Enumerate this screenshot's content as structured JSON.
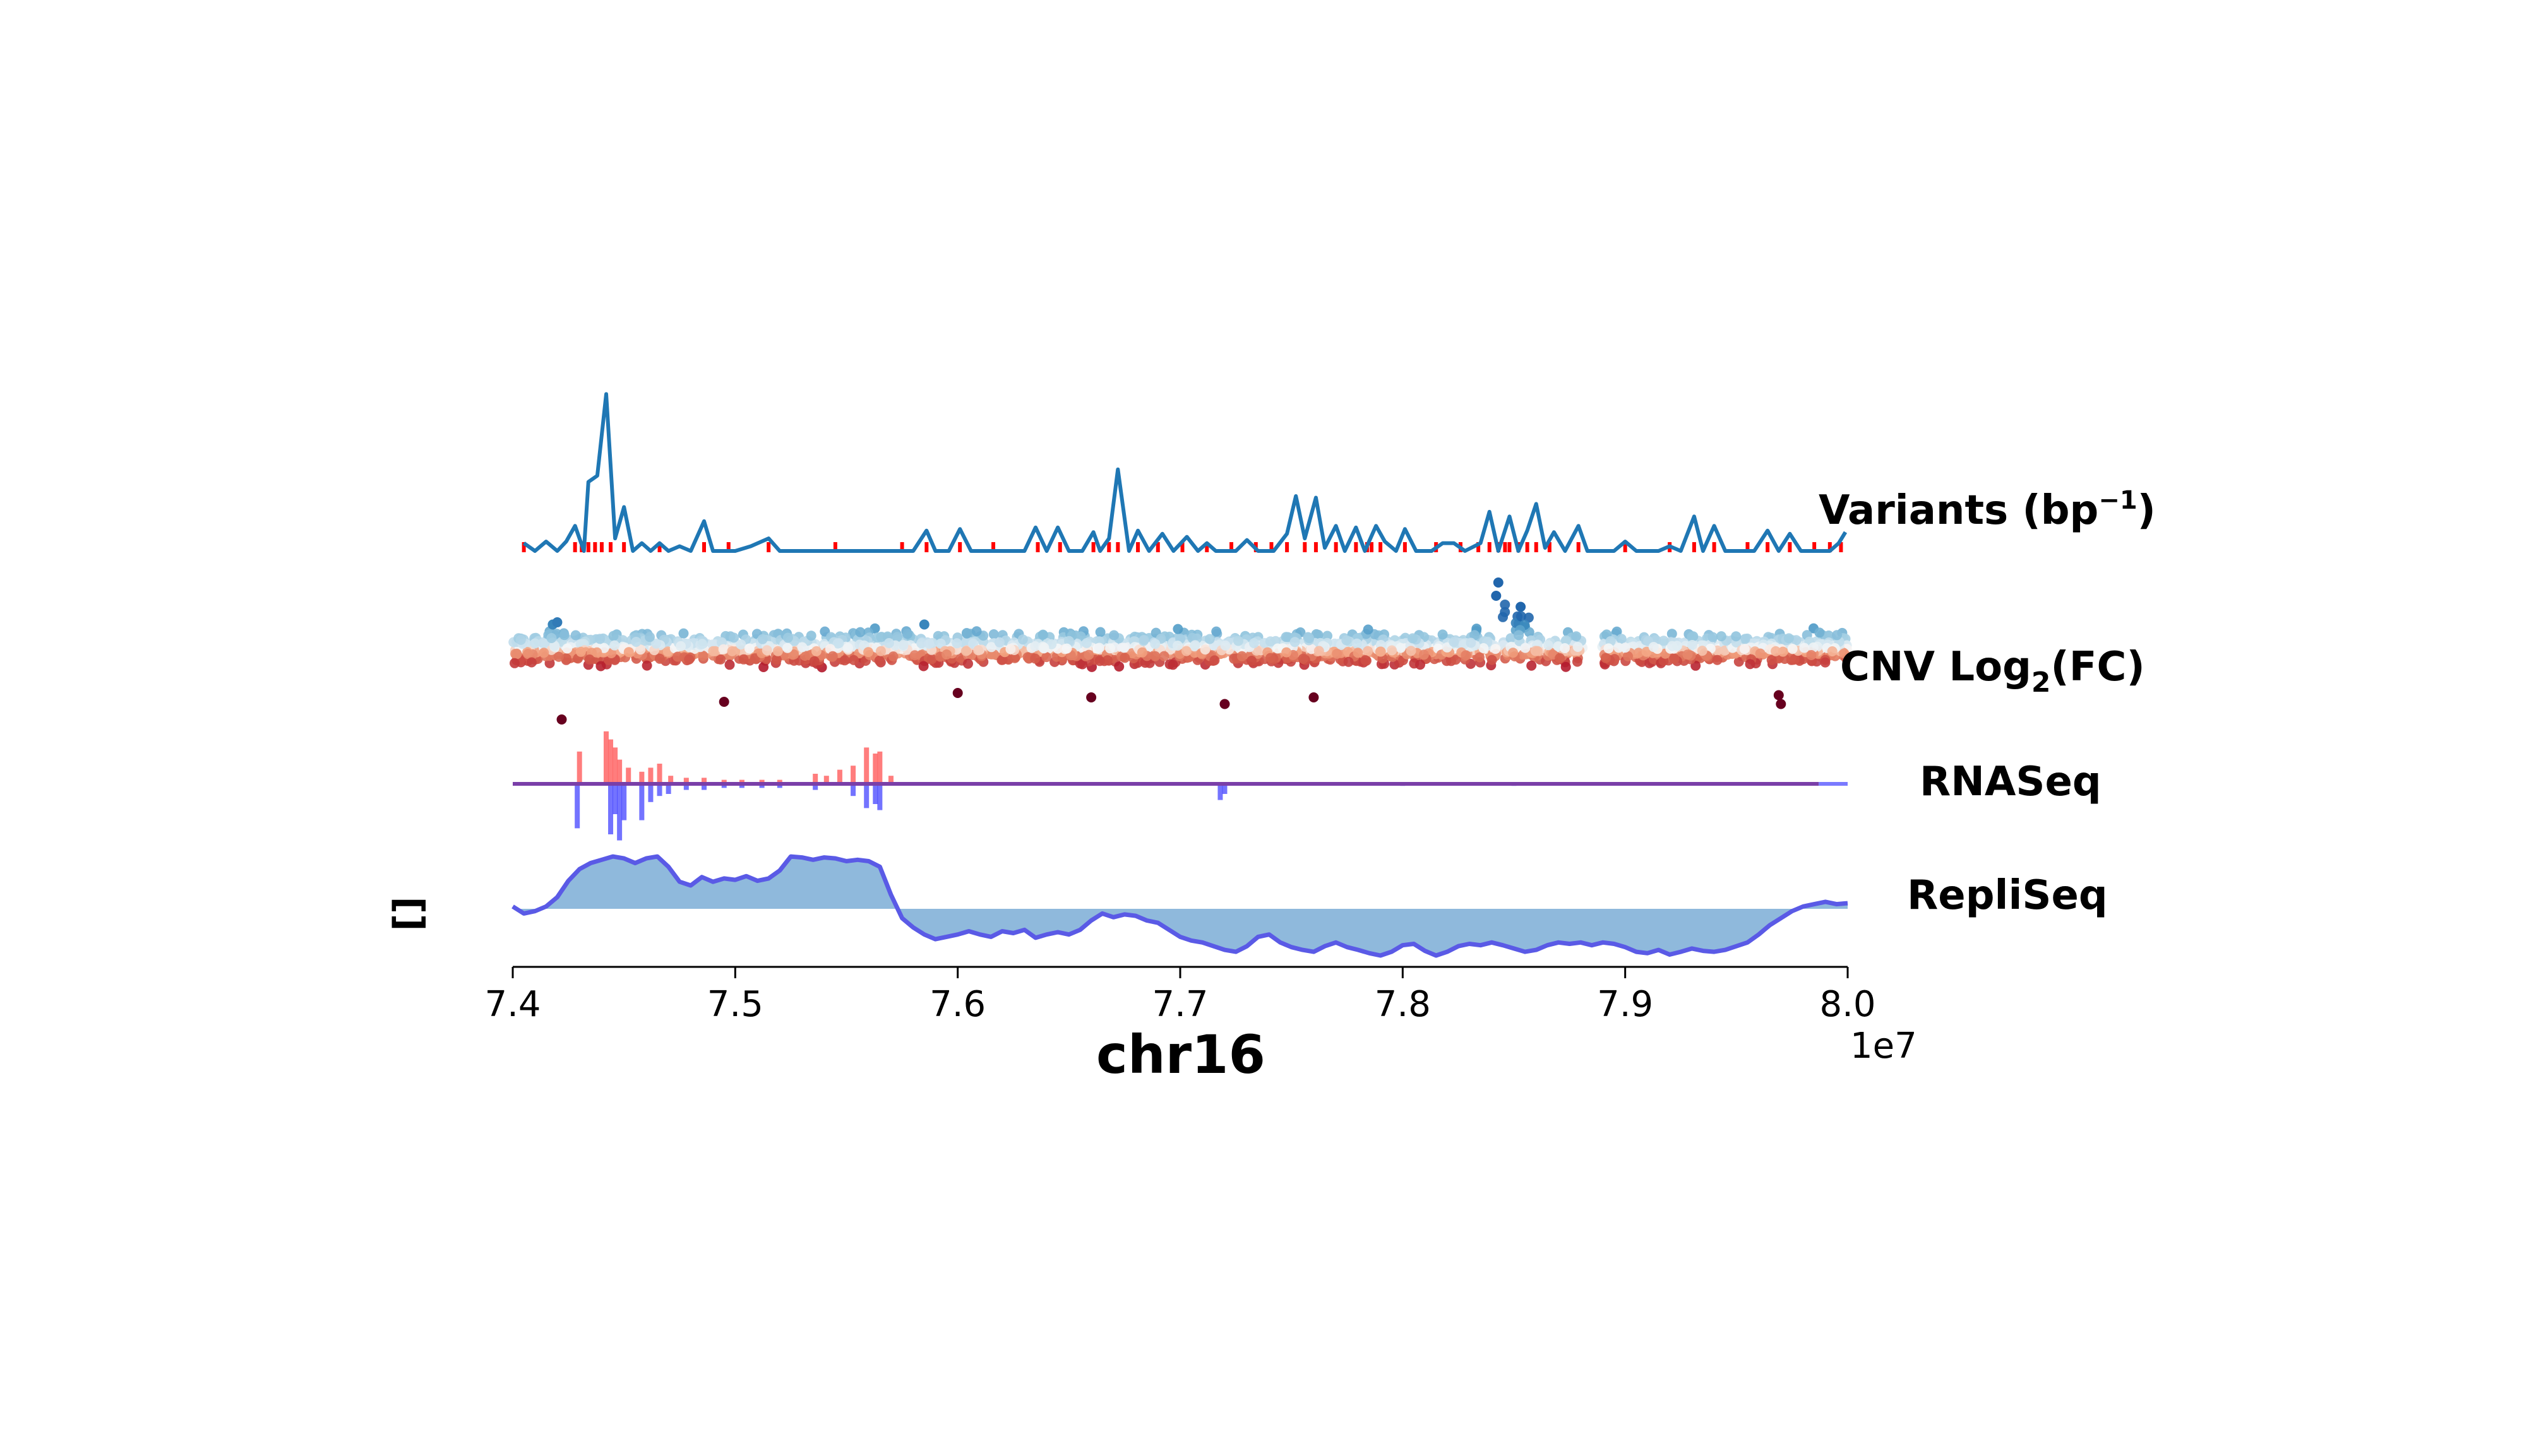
{
  "chart_data": {
    "type": "line",
    "title": "",
    "xlabel": "chr16",
    "x_offset_label": "1e7",
    "xlim": [
      7.4,
      8.0
    ],
    "x_ticks": [
      {
        "value": 7.4,
        "label": "7.4"
      },
      {
        "value": 7.5,
        "label": "7.5"
      },
      {
        "value": 7.6,
        "label": "7.6"
      },
      {
        "value": 7.7,
        "label": "7.7"
      },
      {
        "value": 7.8,
        "label": "7.8"
      },
      {
        "value": 7.9,
        "label": "7.9"
      },
      {
        "value": 8.0,
        "label": "8.0"
      }
    ],
    "left_ylabel": "[]",
    "grid": false,
    "tracks": [
      {
        "name": "variants",
        "label_main": "Variants (bp",
        "label_sup": "−1",
        "label_end": ")",
        "kind": "line",
        "color": "#1f77b4",
        "marker_color": "#ff0000",
        "x": [
          7.405,
          7.415,
          7.425,
          7.435,
          7.445,
          7.45,
          7.455,
          7.46,
          7.465,
          7.47,
          7.48,
          7.485,
          7.49,
          7.5,
          7.515,
          7.53,
          7.56,
          7.585,
          7.6,
          7.63,
          7.64,
          7.65,
          7.665,
          7.67,
          7.68,
          7.69,
          7.7,
          7.715,
          7.73,
          7.74,
          7.745,
          7.75,
          7.76,
          7.765,
          7.775,
          7.785,
          7.795,
          7.805,
          7.815,
          7.825,
          7.83,
          7.84,
          7.845,
          7.855,
          7.86,
          7.87,
          7.88,
          7.89,
          7.895,
          7.905,
          7.915,
          7.925,
          7.935,
          7.95,
          7.96,
          7.97,
          7.98,
          7.99,
          7.995
        ],
        "y": [
          0.5,
          0.5,
          0.5,
          1.5,
          0.5,
          0.5,
          0.5,
          0.5,
          0.5,
          0.5,
          0.5,
          0.5,
          0.5,
          0.5,
          0.5,
          0.5,
          0.5,
          0.5,
          0.5,
          0.5,
          0.5,
          0.5,
          0.5,
          0.5,
          0.5,
          0.5,
          0.5,
          0.5,
          0.5,
          0.5,
          0.5,
          0.5,
          0.5,
          0.5,
          0.5,
          0.5,
          0.5,
          0.5,
          0.5,
          0.5,
          0.5,
          0.5,
          0.5,
          0.5,
          0.5,
          0.5,
          0.5,
          0.5,
          0.5,
          0.5,
          0.5,
          0.5,
          0.5,
          0.5,
          0.5,
          0.5,
          0.5,
          0.5,
          0.5
        ],
        "peaks": [
          {
            "x": 7.405,
            "y": 0.5
          },
          {
            "x": 7.41,
            "y": 0.0
          },
          {
            "x": 7.415,
            "y": 0.6
          },
          {
            "x": 7.42,
            "y": 0.0
          },
          {
            "x": 7.424,
            "y": 0.6
          },
          {
            "x": 7.428,
            "y": 1.6
          },
          {
            "x": 7.432,
            "y": 0.0
          },
          {
            "x": 7.434,
            "y": 4.4
          },
          {
            "x": 7.438,
            "y": 4.8
          },
          {
            "x": 7.442,
            "y": 10.0
          },
          {
            "x": 7.446,
            "y": 0.8
          },
          {
            "x": 7.45,
            "y": 2.8
          },
          {
            "x": 7.454,
            "y": 0.0
          },
          {
            "x": 7.458,
            "y": 0.5
          },
          {
            "x": 7.462,
            "y": 0.0
          },
          {
            "x": 7.466,
            "y": 0.5
          },
          {
            "x": 7.47,
            "y": 0.0
          },
          {
            "x": 7.475,
            "y": 0.3
          },
          {
            "x": 7.48,
            "y": 0.0
          },
          {
            "x": 7.486,
            "y": 1.9
          },
          {
            "x": 7.49,
            "y": 0.0
          },
          {
            "x": 7.5,
            "y": 0.0
          },
          {
            "x": 7.507,
            "y": 0.3
          },
          {
            "x": 7.515,
            "y": 0.8
          },
          {
            "x": 7.52,
            "y": 0.0
          },
          {
            "x": 7.58,
            "y": 0.0
          },
          {
            "x": 7.586,
            "y": 1.3
          },
          {
            "x": 7.59,
            "y": 0.0
          },
          {
            "x": 7.596,
            "y": 0.0
          },
          {
            "x": 7.601,
            "y": 1.4
          },
          {
            "x": 7.606,
            "y": 0.0
          },
          {
            "x": 7.63,
            "y": 0.0
          },
          {
            "x": 7.635,
            "y": 1.5
          },
          {
            "x": 7.64,
            "y": 0.0
          },
          {
            "x": 7.645,
            "y": 1.5
          },
          {
            "x": 7.65,
            "y": 0.0
          },
          {
            "x": 7.656,
            "y": 0.0
          },
          {
            "x": 7.661,
            "y": 1.2
          },
          {
            "x": 7.664,
            "y": 0.0
          },
          {
            "x": 7.668,
            "y": 0.8
          },
          {
            "x": 7.672,
            "y": 5.2
          },
          {
            "x": 7.677,
            "y": 0.0
          },
          {
            "x": 7.681,
            "y": 1.3
          },
          {
            "x": 7.686,
            "y": 0.0
          },
          {
            "x": 7.692,
            "y": 1.1
          },
          {
            "x": 7.697,
            "y": 0.0
          },
          {
            "x": 7.703,
            "y": 0.9
          },
          {
            "x": 7.708,
            "y": 0.0
          },
          {
            "x": 7.712,
            "y": 0.5
          },
          {
            "x": 7.716,
            "y": 0.0
          },
          {
            "x": 7.725,
            "y": 0.0
          },
          {
            "x": 7.73,
            "y": 0.7
          },
          {
            "x": 7.735,
            "y": 0.0
          },
          {
            "x": 7.742,
            "y": 0.0
          },
          {
            "x": 7.748,
            "y": 1.1
          },
          {
            "x": 7.752,
            "y": 3.5
          },
          {
            "x": 7.756,
            "y": 0.8
          },
          {
            "x": 7.761,
            "y": 3.4
          },
          {
            "x": 7.765,
            "y": 0.2
          },
          {
            "x": 7.77,
            "y": 1.6
          },
          {
            "x": 7.774,
            "y": 0.0
          },
          {
            "x": 7.779,
            "y": 1.5
          },
          {
            "x": 7.783,
            "y": 0.0
          },
          {
            "x": 7.788,
            "y": 1.6
          },
          {
            "x": 7.792,
            "y": 0.6
          },
          {
            "x": 7.797,
            "y": 0.0
          },
          {
            "x": 7.801,
            "y": 1.4
          },
          {
            "x": 7.806,
            "y": 0.0
          },
          {
            "x": 7.813,
            "y": 0.0
          },
          {
            "x": 7.818,
            "y": 0.5
          },
          {
            "x": 7.823,
            "y": 0.5
          },
          {
            "x": 7.828,
            "y": 0.0
          },
          {
            "x": 7.835,
            "y": 0.5
          },
          {
            "x": 7.839,
            "y": 2.5
          },
          {
            "x": 7.843,
            "y": 0.0
          },
          {
            "x": 7.848,
            "y": 2.2
          },
          {
            "x": 7.852,
            "y": 0.0
          },
          {
            "x": 7.856,
            "y": 1.3
          },
          {
            "x": 7.86,
            "y": 3.0
          },
          {
            "x": 7.864,
            "y": 0.2
          },
          {
            "x": 7.868,
            "y": 1.2
          },
          {
            "x": 7.873,
            "y": 0.0
          },
          {
            "x": 7.879,
            "y": 1.6
          },
          {
            "x": 7.883,
            "y": 0.0
          },
          {
            "x": 7.895,
            "y": 0.0
          },
          {
            "x": 7.9,
            "y": 0.6
          },
          {
            "x": 7.905,
            "y": 0.0
          },
          {
            "x": 7.915,
            "y": 0.0
          },
          {
            "x": 7.92,
            "y": 0.3
          },
          {
            "x": 7.925,
            "y": 0.0
          },
          {
            "x": 7.931,
            "y": 2.2
          },
          {
            "x": 7.935,
            "y": 0.0
          },
          {
            "x": 7.94,
            "y": 1.6
          },
          {
            "x": 7.945,
            "y": 0.0
          },
          {
            "x": 7.958,
            "y": 0.0
          },
          {
            "x": 7.964,
            "y": 1.3
          },
          {
            "x": 7.969,
            "y": 0.0
          },
          {
            "x": 7.974,
            "y": 1.1
          },
          {
            "x": 7.979,
            "y": 0.0
          },
          {
            "x": 7.992,
            "y": 0.0
          },
          {
            "x": 7.996,
            "y": 0.5
          },
          {
            "x": 7.999,
            "y": 1.2
          }
        ],
        "ylim": [
          0,
          10.5
        ],
        "rug": [
          7.405,
          7.428,
          7.431,
          7.434,
          7.437,
          7.44,
          7.444,
          7.45,
          7.466,
          7.486,
          7.497,
          7.515,
          7.545,
          7.575,
          7.586,
          7.601,
          7.616,
          7.636,
          7.646,
          7.661,
          7.668,
          7.672,
          7.681,
          7.69,
          7.701,
          7.712,
          7.723,
          7.734,
          7.741,
          7.748,
          7.756,
          7.761,
          7.77,
          7.779,
          7.784,
          7.786,
          7.79,
          7.801,
          7.815,
          7.826,
          7.834,
          7.839,
          7.843,
          7.846,
          7.848,
          7.852,
          7.856,
          7.86,
          7.866,
          7.879,
          7.9,
          7.92,
          7.931,
          7.94,
          7.955,
          7.964,
          7.974,
          7.985,
          7.992,
          7.997
        ]
      },
      {
        "name": "cnv",
        "label_main": "CNV Log",
        "label_sub": "2",
        "label_end": "(FC)",
        "kind": "scatter",
        "colormap": "RdBu",
        "ylim": [
          -1.5,
          1.5
        ]
      },
      {
        "name": "rnaseq",
        "label_main": "RNASeq",
        "kind": "bar",
        "pos_color": "#ff6666",
        "neg_color": "#4444ff",
        "line_color": "#7a3fa8",
        "ylim": [
          -3,
          3
        ],
        "positive": [
          {
            "x": 7.43,
            "y": 1.6
          },
          {
            "x": 7.442,
            "y": 2.6
          },
          {
            "x": 7.444,
            "y": 2.2
          },
          {
            "x": 7.446,
            "y": 1.8
          },
          {
            "x": 7.448,
            "y": 1.2
          },
          {
            "x": 7.452,
            "y": 0.8
          },
          {
            "x": 7.458,
            "y": 0.6
          },
          {
            "x": 7.462,
            "y": 0.8
          },
          {
            "x": 7.466,
            "y": 1.0
          },
          {
            "x": 7.471,
            "y": 0.4
          },
          {
            "x": 7.478,
            "y": 0.3
          },
          {
            "x": 7.486,
            "y": 0.3
          },
          {
            "x": 7.495,
            "y": 0.2
          },
          {
            "x": 7.503,
            "y": 0.2
          },
          {
            "x": 7.512,
            "y": 0.2
          },
          {
            "x": 7.52,
            "y": 0.2
          },
          {
            "x": 7.536,
            "y": 0.5
          },
          {
            "x": 7.541,
            "y": 0.4
          },
          {
            "x": 7.547,
            "y": 0.7
          },
          {
            "x": 7.553,
            "y": 0.9
          },
          {
            "x": 7.559,
            "y": 1.8
          },
          {
            "x": 7.563,
            "y": 1.5
          },
          {
            "x": 7.565,
            "y": 1.6
          },
          {
            "x": 7.57,
            "y": 0.4
          }
        ],
        "negative": [
          {
            "x": 7.429,
            "y": -2.2
          },
          {
            "x": 7.444,
            "y": -2.5
          },
          {
            "x": 7.446,
            "y": -1.5
          },
          {
            "x": 7.448,
            "y": -2.8
          },
          {
            "x": 7.45,
            "y": -1.8
          },
          {
            "x": 7.458,
            "y": -1.8
          },
          {
            "x": 7.462,
            "y": -0.9
          },
          {
            "x": 7.466,
            "y": -0.6
          },
          {
            "x": 7.47,
            "y": -0.5
          },
          {
            "x": 7.478,
            "y": -0.3
          },
          {
            "x": 7.486,
            "y": -0.3
          },
          {
            "x": 7.495,
            "y": -0.2
          },
          {
            "x": 7.503,
            "y": -0.2
          },
          {
            "x": 7.512,
            "y": -0.2
          },
          {
            "x": 7.52,
            "y": -0.2
          },
          {
            "x": 7.536,
            "y": -0.3
          },
          {
            "x": 7.553,
            "y": -0.6
          },
          {
            "x": 7.559,
            "y": -1.2
          },
          {
            "x": 7.563,
            "y": -1.0
          },
          {
            "x": 7.565,
            "y": -1.3
          },
          {
            "x": 7.718,
            "y": -0.8
          },
          {
            "x": 7.72,
            "y": -0.5
          },
          {
            "x": 7.8,
            "y": -0.1
          },
          {
            "x": 7.85,
            "y": -0.1
          }
        ]
      },
      {
        "name": "repliseq",
        "label_main": "RepliSeq",
        "kind": "area",
        "fill_color": "#8fb9dc",
        "line_color": "#5a5ae6",
        "ylim": [
          -1.2,
          1.2
        ],
        "x": [
          7.4,
          7.405,
          7.41,
          7.415,
          7.42,
          7.425,
          7.43,
          7.435,
          7.44,
          7.445,
          7.45,
          7.455,
          7.46,
          7.465,
          7.47,
          7.475,
          7.48,
          7.485,
          7.49,
          7.495,
          7.5,
          7.505,
          7.51,
          7.515,
          7.52,
          7.525,
          7.53,
          7.535,
          7.54,
          7.545,
          7.55,
          7.555,
          7.56,
          7.565,
          7.57,
          7.575,
          7.58,
          7.585,
          7.59,
          7.595,
          7.6,
          7.605,
          7.61,
          7.615,
          7.62,
          7.625,
          7.63,
          7.635,
          7.64,
          7.645,
          7.65,
          7.655,
          7.66,
          7.665,
          7.67,
          7.675,
          7.68,
          7.685,
          7.69,
          7.695,
          7.7,
          7.705,
          7.71,
          7.715,
          7.72,
          7.725,
          7.73,
          7.735,
          7.74,
          7.745,
          7.75,
          7.755,
          7.76,
          7.765,
          7.77,
          7.775,
          7.78,
          7.785,
          7.79,
          7.795,
          7.8,
          7.805,
          7.81,
          7.815,
          7.82,
          7.825,
          7.83,
          7.835,
          7.84,
          7.845,
          7.85,
          7.855,
          7.86,
          7.865,
          7.87,
          7.875,
          7.88,
          7.885,
          7.89,
          7.895,
          7.9,
          7.905,
          7.91,
          7.915,
          7.92,
          7.925,
          7.93,
          7.935,
          7.94,
          7.945,
          7.95,
          7.955,
          7.96,
          7.965,
          7.97,
          7.975,
          7.98,
          7.985,
          7.99,
          7.995,
          8.0
        ],
        "y": [
          0.05,
          -0.1,
          -0.05,
          0.05,
          0.25,
          0.6,
          0.85,
          0.98,
          1.05,
          1.12,
          1.08,
          0.98,
          1.08,
          1.12,
          0.9,
          0.58,
          0.5,
          0.68,
          0.58,
          0.65,
          0.62,
          0.7,
          0.6,
          0.65,
          0.82,
          1.12,
          1.1,
          1.05,
          1.1,
          1.08,
          1.02,
          1.05,
          1.02,
          0.9,
          0.3,
          -0.2,
          -0.4,
          -0.55,
          -0.65,
          -0.6,
          -0.55,
          -0.48,
          -0.55,
          -0.6,
          -0.48,
          -0.52,
          -0.45,
          -0.62,
          -0.55,
          -0.5,
          -0.55,
          -0.45,
          -0.25,
          -0.1,
          -0.18,
          -0.12,
          -0.15,
          -0.25,
          -0.3,
          -0.45,
          -0.6,
          -0.68,
          -0.72,
          -0.8,
          -0.88,
          -0.92,
          -0.8,
          -0.6,
          -0.55,
          -0.72,
          -0.82,
          -0.88,
          -0.92,
          -0.8,
          -0.72,
          -0.82,
          -0.88,
          -0.95,
          -1.0,
          -0.92,
          -0.78,
          -0.75,
          -0.9,
          -1.0,
          -0.92,
          -0.8,
          -0.75,
          -0.78,
          -0.72,
          -0.78,
          -0.85,
          -0.92,
          -0.88,
          -0.78,
          -0.72,
          -0.75,
          -0.72,
          -0.78,
          -0.72,
          -0.75,
          -0.82,
          -0.92,
          -0.95,
          -0.88,
          -0.98,
          -0.92,
          -0.85,
          -0.9,
          -0.92,
          -0.88,
          -0.8,
          -0.72,
          -0.55,
          -0.35,
          -0.2,
          -0.05,
          0.05,
          0.1,
          0.15,
          0.1,
          0.12
        ]
      }
    ]
  }
}
